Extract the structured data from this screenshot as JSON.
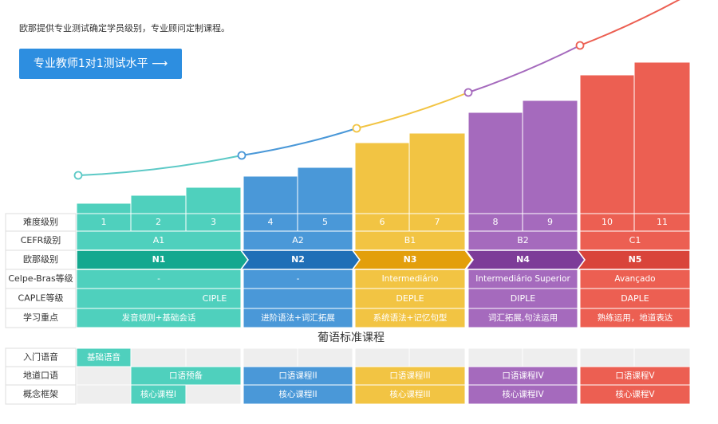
{
  "intro": "欧那提供专业测试确定学员级别，专业顾问定制课程。",
  "button": "专业教师1对1测试水平 ⟶",
  "levels_table": {
    "row_labels": [
      "难度级别",
      "CEFR级别",
      "欧那级别",
      "Celpe-Bras等级",
      "CAPLE等级",
      "学习重点"
    ],
    "levels": [
      "1",
      "2",
      "3",
      "4",
      "5",
      "6",
      "7",
      "8",
      "9",
      "10",
      "11"
    ],
    "cefr": [
      "A1",
      "A2",
      "B1",
      "B2",
      "C1"
    ],
    "oufei": [
      "N1",
      "N2",
      "N3",
      "N4",
      "N5"
    ],
    "celpe": [
      "-",
      "-",
      "Intermediário",
      "Intermediário Superior",
      "Avançado"
    ],
    "caple": [
      "CIPLE",
      "DEPLE",
      "DIPLE",
      "DAPLE"
    ],
    "focus": [
      "发音规则+基础会话",
      "进阶语法+词汇拓展",
      "系统语法+记忆句型",
      "词汇拓展,句法运用",
      "熟练运用，地道表达"
    ]
  },
  "courses": {
    "title": "葡语标准课程",
    "rows": [
      {
        "label": "入门语音",
        "cells": [
          "基础语音"
        ]
      },
      {
        "label": "地道口语",
        "cells": [
          "口语预备",
          "口语课程II",
          "口语课程III",
          "口语课程IV",
          "口语课程V"
        ]
      },
      {
        "label": "概念框架",
        "cells": [
          "核心课程I",
          "核心课程II",
          "核心课程III",
          "核心课程IV",
          "核心课程V"
        ]
      }
    ]
  }
}
